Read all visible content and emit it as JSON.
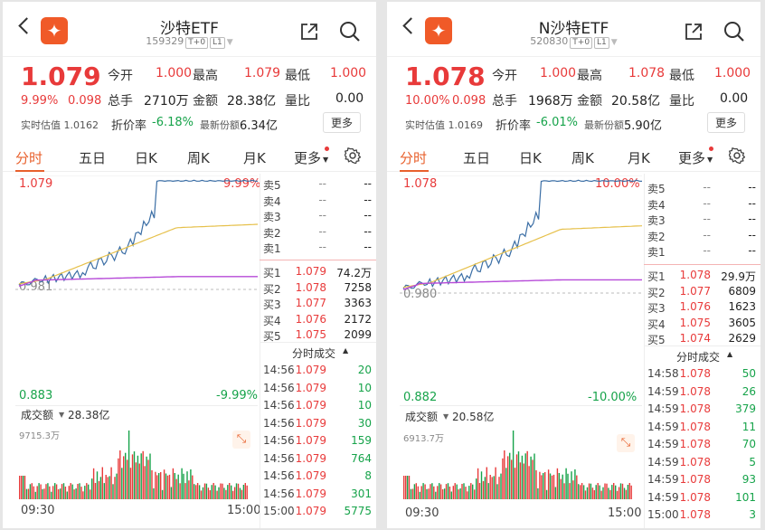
{
  "colors": {
    "up": "#e83a3a",
    "down": "#16a34a",
    "accent": "#e8602c",
    "price_line": "#3b6ea5",
    "avg_line": "#e6c04a",
    "ref_line": "#b64ad8"
  },
  "panels": [
    {
      "title": "沙特ETF",
      "code": "159329",
      "tag1": "T+0",
      "tag2": "L1",
      "price": "1.079",
      "pct": "9.99%",
      "chg": "0.098",
      "open_l": "今开",
      "open_v": "1.000",
      "high_l": "最高",
      "high_v": "1.079",
      "low_l": "最低",
      "low_v": "1.000",
      "vol_l": "总手",
      "vol_v": "2710万",
      "amt_l": "金额",
      "amt_v": "28.38亿",
      "ratio_l": "量比",
      "ratio_v": "0.00",
      "iopv": "实时估值 1.0162",
      "disc_l": "折价率",
      "disc_v": "-6.18%",
      "share_l": "最新份额",
      "share_v": "6.34亿",
      "more": "更多",
      "tabs": [
        "分时",
        "五日",
        "日K",
        "周K",
        "月K",
        "更多"
      ],
      "y_top": "1.079",
      "y_mid": "0.981",
      "y_bot": "0.883",
      "pct_top": "9.99%",
      "pct_bot": "-9.99%",
      "amt_label": "成交额",
      "amt_total": "28.38亿",
      "vol_scale": "9715.3万",
      "t_start": "09:30",
      "t_end": "15:00",
      "asks": [
        {
          "l": "卖5",
          "p": "--",
          "v": "--"
        },
        {
          "l": "卖4",
          "p": "--",
          "v": "--"
        },
        {
          "l": "卖3",
          "p": "--",
          "v": "--"
        },
        {
          "l": "卖2",
          "p": "--",
          "v": "--"
        },
        {
          "l": "卖1",
          "p": "--",
          "v": "--"
        }
      ],
      "bids": [
        {
          "l": "买1",
          "p": "1.079",
          "v": "74.2万"
        },
        {
          "l": "买2",
          "p": "1.078",
          "v": "7258"
        },
        {
          "l": "买3",
          "p": "1.077",
          "v": "3363"
        },
        {
          "l": "买4",
          "p": "1.076",
          "v": "2172"
        },
        {
          "l": "买5",
          "p": "1.075",
          "v": "2099"
        }
      ],
      "trades_title": "分时成交",
      "trades": [
        {
          "t": "14:56",
          "p": "1.079",
          "v": "20"
        },
        {
          "t": "14:56",
          "p": "1.079",
          "v": "10"
        },
        {
          "t": "14:56",
          "p": "1.079",
          "v": "10"
        },
        {
          "t": "14:56",
          "p": "1.079",
          "v": "30"
        },
        {
          "t": "14:56",
          "p": "1.079",
          "v": "159"
        },
        {
          "t": "14:56",
          "p": "1.079",
          "v": "764"
        },
        {
          "t": "14:56",
          "p": "1.079",
          "v": "8"
        },
        {
          "t": "14:56",
          "p": "1.079",
          "v": "301"
        },
        {
          "t": "15:00",
          "p": "1.079",
          "v": "5775"
        }
      ]
    },
    {
      "title": "N沙特ETF",
      "code": "520830",
      "tag1": "T+0",
      "tag2": "L1",
      "price": "1.078",
      "pct": "10.00%",
      "chg": "0.098",
      "open_l": "今开",
      "open_v": "1.000",
      "high_l": "最高",
      "high_v": "1.078",
      "low_l": "最低",
      "low_v": "1.000",
      "vol_l": "总手",
      "vol_v": "1968万",
      "amt_l": "金额",
      "amt_v": "20.58亿",
      "ratio_l": "量比",
      "ratio_v": "0.00",
      "iopv": "实时估值 1.0169",
      "disc_l": "折价率",
      "disc_v": "-6.01%",
      "share_l": "最新份额",
      "share_v": "5.90亿",
      "more": "更多",
      "tabs": [
        "分时",
        "五日",
        "日K",
        "周K",
        "月K",
        "更多"
      ],
      "y_top": "1.078",
      "y_mid": "0.980",
      "y_bot": "0.882",
      "pct_top": "10.00%",
      "pct_bot": "-10.00%",
      "amt_label": "成交额",
      "amt_total": "20.58亿",
      "vol_scale": "6913.7万",
      "t_start": "09:30",
      "t_end": "15:00",
      "asks": [
        {
          "l": "卖5",
          "p": "--",
          "v": "--"
        },
        {
          "l": "卖4",
          "p": "--",
          "v": "--"
        },
        {
          "l": "卖3",
          "p": "--",
          "v": "--"
        },
        {
          "l": "卖2",
          "p": "--",
          "v": "--"
        },
        {
          "l": "卖1",
          "p": "--",
          "v": "--"
        }
      ],
      "bids": [
        {
          "l": "买1",
          "p": "1.078",
          "v": "29.9万"
        },
        {
          "l": "买2",
          "p": "1.077",
          "v": "6809"
        },
        {
          "l": "买3",
          "p": "1.076",
          "v": "1623"
        },
        {
          "l": "买4",
          "p": "1.075",
          "v": "3605"
        },
        {
          "l": "买5",
          "p": "1.074",
          "v": "2629"
        }
      ],
      "trades_title": "分时成交",
      "trades": [
        {
          "t": "14:58",
          "p": "1.078",
          "v": "50"
        },
        {
          "t": "14:59",
          "p": "1.078",
          "v": "26"
        },
        {
          "t": "14:59",
          "p": "1.078",
          "v": "379"
        },
        {
          "t": "14:59",
          "p": "1.078",
          "v": "11"
        },
        {
          "t": "14:59",
          "p": "1.078",
          "v": "70"
        },
        {
          "t": "14:59",
          "p": "1.078",
          "v": "5"
        },
        {
          "t": "14:59",
          "p": "1.078",
          "v": "93"
        },
        {
          "t": "14:59",
          "p": "1.078",
          "v": "101"
        },
        {
          "t": "15:00",
          "p": "1.078",
          "v": "3"
        }
      ]
    }
  ]
}
